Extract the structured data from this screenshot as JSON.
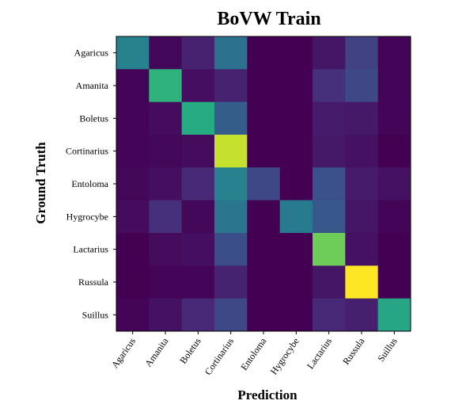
{
  "chart_data": {
    "type": "heatmap",
    "title": "BoVW Train",
    "xlabel": "Prediction",
    "ylabel": "Ground Truth",
    "categories": [
      "Agaricus",
      "Amanita",
      "Boletus",
      "Cortinarius",
      "Entoloma",
      "Hygrocybe",
      "Lactarius",
      "Russula",
      "Suillus"
    ],
    "x_categories": [
      "Agaricus",
      "Amanita",
      "Boletus",
      "Cortinarius",
      "Entoloma",
      "Hygrocybe",
      "Lactarius",
      "Russula",
      "Suillus"
    ],
    "y_categories": [
      "Agaricus",
      "Amanita",
      "Boletus",
      "Cortinarius",
      "Entoloma",
      "Hygrocybe",
      "Lactarius",
      "Russula",
      "Suillus"
    ],
    "values": [
      [
        0.45,
        0.02,
        0.1,
        0.38,
        0.0,
        0.0,
        0.06,
        0.2,
        0.01
      ],
      [
        0.01,
        0.65,
        0.04,
        0.1,
        0.0,
        0.0,
        0.14,
        0.22,
        0.01
      ],
      [
        0.01,
        0.03,
        0.62,
        0.3,
        0.0,
        0.0,
        0.08,
        0.07,
        0.01
      ],
      [
        0.01,
        0.02,
        0.03,
        0.92,
        0.0,
        0.0,
        0.07,
        0.05,
        0.0
      ],
      [
        0.02,
        0.04,
        0.12,
        0.44,
        0.22,
        0.0,
        0.25,
        0.08,
        0.05
      ],
      [
        0.03,
        0.14,
        0.02,
        0.4,
        0.0,
        0.42,
        0.28,
        0.06,
        0.01
      ],
      [
        0.0,
        0.03,
        0.04,
        0.24,
        0.0,
        0.0,
        0.78,
        0.05,
        0.0
      ],
      [
        0.0,
        0.01,
        0.01,
        0.1,
        0.0,
        0.0,
        0.06,
        1.0,
        0.0
      ],
      [
        0.01,
        0.05,
        0.12,
        0.22,
        0.0,
        0.0,
        0.12,
        0.09,
        0.6
      ]
    ],
    "vmin": 0,
    "vmax": 1,
    "colormap": "viridis",
    "colors": {
      "low": "#440154",
      "mid": "#21918c",
      "high": "#fde725"
    }
  }
}
